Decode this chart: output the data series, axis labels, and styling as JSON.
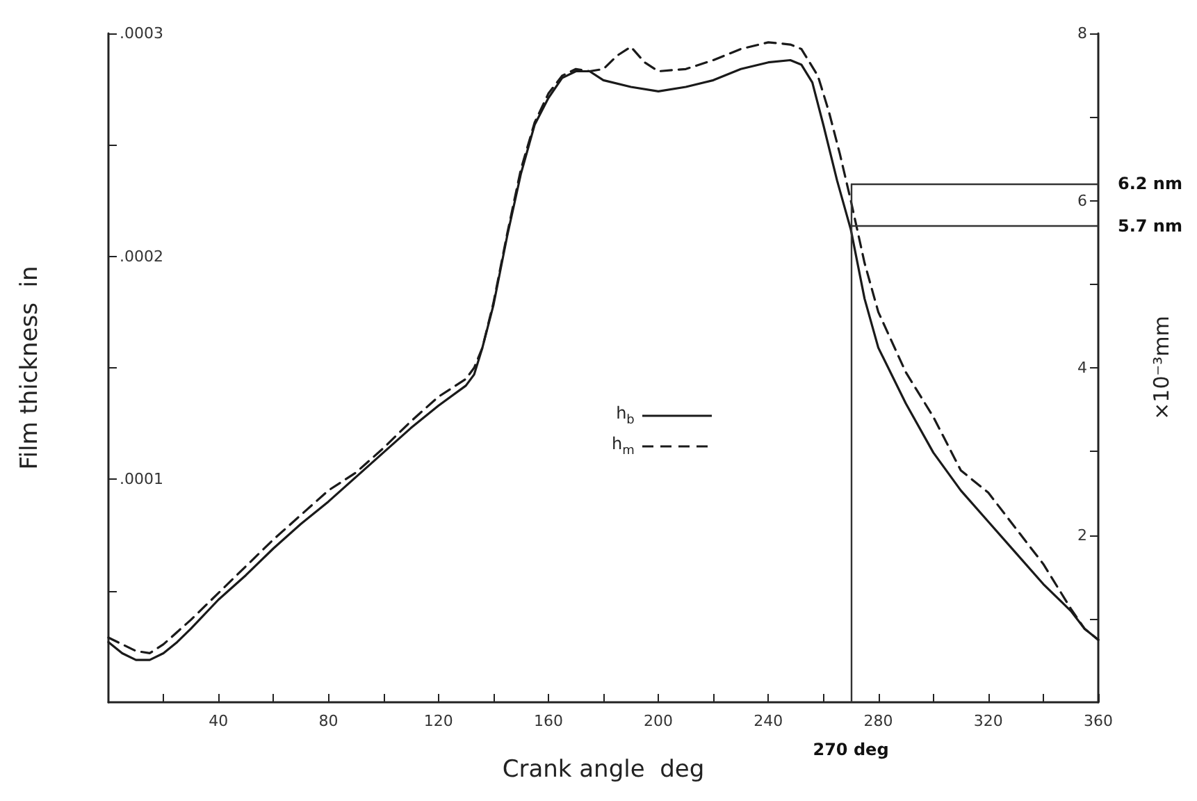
{
  "chart_data": {
    "type": "line",
    "xlabel": "Crank angle  deg",
    "ylabel": "Film thickness  in",
    "y2label": "×10⁻³mm",
    "xlim": [
      0,
      360
    ],
    "xticks": [
      {
        "value": 20,
        "label": null
      },
      40,
      {
        "value": 60,
        "label": null
      },
      80,
      {
        "value": 100,
        "label": null
      },
      120,
      {
        "value": 140,
        "label": null
      },
      160,
      {
        "value": 180,
        "label": null
      },
      200,
      {
        "value": 220,
        "label": null
      },
      240,
      {
        "value": 260,
        "label": null
      },
      280,
      {
        "value": 300,
        "label": null
      },
      320,
      {
        "value": 340,
        "label": null
      },
      360
    ],
    "ylim": [
      0,
      0.0003
    ],
    "yticks": [
      {
        "value": 5e-05,
        "label": null
      },
      {
        "value": 0.0001,
        "label": ".0001"
      },
      {
        "value": 0.00015,
        "label": null
      },
      {
        "value": 0.0002,
        "label": ".0002"
      },
      {
        "value": 0.00025,
        "label": null
      },
      {
        "value": 0.0003,
        "label": ".0003"
      }
    ],
    "y2lim": [
      0,
      8
    ],
    "y2ticks": [
      {
        "value": 1,
        "label": null
      },
      2,
      {
        "value": 3,
        "label": null
      },
      4,
      {
        "value": 5,
        "label": null
      },
      6,
      {
        "value": 7,
        "label": null
      },
      8
    ],
    "legend": "center",
    "marker": "none",
    "series": [
      {
        "name": "h$_{b}$",
        "color": "#1a1a1a",
        "line_style": "solid",
        "x": [
          0,
          5,
          10,
          15,
          20,
          25,
          30,
          40,
          50,
          60,
          70,
          80,
          90,
          100,
          110,
          120,
          130,
          133,
          136,
          140,
          145,
          150,
          155,
          160,
          165,
          170,
          175,
          180,
          190,
          200,
          210,
          220,
          230,
          240,
          248,
          252,
          256,
          260,
          265,
          270,
          275,
          280,
          290,
          300,
          310,
          320,
          330,
          340,
          350,
          355,
          360
        ],
        "values": [
          2.7e-05,
          2.2e-05,
          1.9e-05,
          1.9e-05,
          2.2e-05,
          2.7e-05,
          3.3e-05,
          4.6e-05,
          5.7e-05,
          6.9e-05,
          8e-05,
          9e-05,
          0.000101,
          0.000112,
          0.000123,
          0.000133,
          0.000142,
          0.000147,
          0.000159,
          0.000178,
          0.000209,
          0.000237,
          0.000259,
          0.000271,
          0.00028,
          0.000283,
          0.000283,
          0.000279,
          0.000276,
          0.000274,
          0.000276,
          0.000279,
          0.000284,
          0.000287,
          0.000288,
          0.000286,
          0.000278,
          0.000259,
          0.000234,
          0.000212,
          0.000181,
          0.000159,
          0.000134,
          0.000112,
          9.5e-05,
          8.1e-05,
          6.7e-05,
          5.3e-05,
          4.1e-05,
          3.3e-05,
          2.8e-05
        ]
      },
      {
        "name": "h$_{m}$",
        "color": "#1a1a1a",
        "line_style": "dashed",
        "x": [
          0,
          10,
          15,
          20,
          30,
          40,
          50,
          60,
          70,
          80,
          90,
          100,
          110,
          120,
          130,
          133,
          136,
          140,
          145,
          150,
          155,
          160,
          165,
          170,
          175,
          180,
          185,
          190,
          195,
          200,
          210,
          220,
          230,
          240,
          248,
          252,
          258,
          262,
          266,
          270,
          275,
          280,
          290,
          300,
          310,
          320,
          330,
          340,
          350,
          355,
          360
        ],
        "values": [
          2.9e-05,
          2.3e-05,
          2.2e-05,
          2.6e-05,
          3.7e-05,
          4.9e-05,
          6.1e-05,
          7.3e-05,
          8.4e-05,
          9.5e-05,
          0.000103,
          0.000114,
          0.000126,
          0.000137,
          0.000145,
          0.00015,
          0.000159,
          0.000179,
          0.00021,
          0.000239,
          0.00026,
          0.000273,
          0.000281,
          0.000284,
          0.000283,
          0.000284,
          0.00029,
          0.000294,
          0.000287,
          0.000283,
          0.000284,
          0.000288,
          0.000293,
          0.000296,
          0.000295,
          0.000293,
          0.000281,
          0.000265,
          0.000246,
          0.000225,
          0.000197,
          0.000175,
          0.000148,
          0.000128,
          0.000104,
          9.4e-05,
          7.8e-05,
          6.2e-05,
          4.2e-05,
          3.3e-05,
          2.8e-05
        ]
      }
    ],
    "ref_lines": [
      {
        "axis": "x",
        "value": 270,
        "label": "270 deg"
      },
      {
        "axis": "y2",
        "value": 6.2,
        "label": "6.2 nm"
      },
      {
        "axis": "y2",
        "value": 5.7,
        "label": "5.7 nm"
      }
    ]
  }
}
